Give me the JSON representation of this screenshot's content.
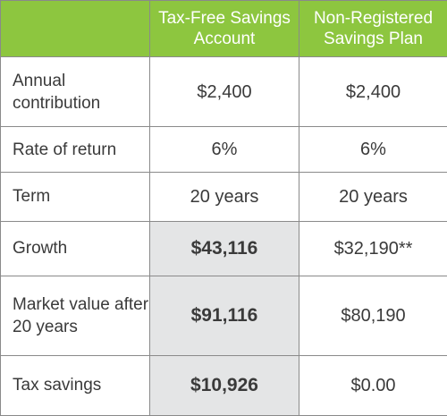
{
  "table": {
    "headers": {
      "corner": "",
      "col1": "Tax-Free Savings Account",
      "col2": "Non-Registered Savings Plan"
    },
    "rows": [
      {
        "label": "Annual contribution",
        "tfsa": "$2,400",
        "nonreg": "$2,400"
      },
      {
        "label": "Rate of return",
        "tfsa": "6%",
        "nonreg": "6%"
      },
      {
        "label": "Term",
        "tfsa": "20 years",
        "nonreg": "20 years"
      },
      {
        "label": "Growth",
        "tfsa": "$43,116",
        "nonreg": "$32,190**"
      },
      {
        "label": "Market value after 20 years",
        "tfsa": "$91,116",
        "nonreg": "$80,190"
      },
      {
        "label": "Tax savings",
        "tfsa": "$10,926",
        "nonreg": "$0.00"
      }
    ]
  },
  "colors": {
    "header_green": "#8dc63f",
    "shaded_cell": "#e4e5e6",
    "border": "#8a8a8a",
    "text": "#3a3a3a"
  }
}
